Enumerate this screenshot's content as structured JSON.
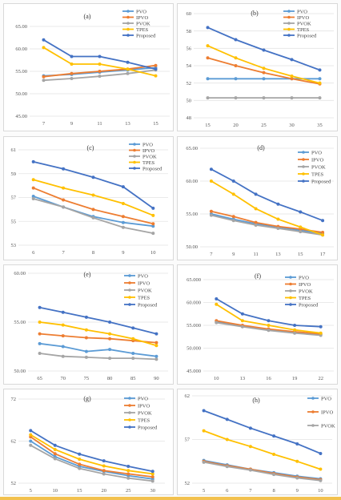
{
  "series_names": [
    "PVO",
    "IPVO",
    "PVOK",
    "TPES",
    "Proposed"
  ],
  "colors": {
    "PVO": "#5b9bd5",
    "IPVO": "#ed7d31",
    "PVOK": "#a5a5a5",
    "TPES": "#ffc000",
    "Proposed": "#4472c4"
  },
  "chart_data": [
    {
      "id": "a",
      "panel_label": "(a)",
      "type": "line",
      "x": [
        7,
        9,
        11,
        13,
        15
      ],
      "x_tick_labels": [
        "7",
        "9",
        "11",
        "13",
        "15"
      ],
      "ylim": [
        45,
        65
      ],
      "y_ticks": [
        45,
        50,
        55,
        60,
        65
      ],
      "y_tick_labels": [
        "45.00",
        "50.00",
        "55.00",
        "60.00",
        "65.00"
      ],
      "series": [
        {
          "name": "PVO",
          "values": [
            54.0,
            54.3,
            54.8,
            55.3,
            55.8
          ]
        },
        {
          "name": "IPVO",
          "values": [
            53.8,
            54.5,
            55.0,
            55.5,
            56.3
          ]
        },
        {
          "name": "PVOK",
          "values": [
            53.0,
            53.4,
            53.9,
            54.5,
            55.3
          ]
        },
        {
          "name": "TPES",
          "values": [
            60.3,
            56.6,
            56.6,
            55.5,
            54.0
          ]
        },
        {
          "name": "Proposed",
          "values": [
            62.0,
            58.3,
            58.3,
            57.0,
            55.5
          ]
        }
      ]
    },
    {
      "id": "b",
      "panel_label": "(b)",
      "type": "line",
      "x": [
        15,
        20,
        25,
        30,
        35
      ],
      "x_tick_labels": [
        "15",
        "20",
        "25",
        "30",
        "35"
      ],
      "ylim": [
        48,
        60
      ],
      "y_ticks": [
        48,
        50,
        52,
        54,
        56,
        58,
        60
      ],
      "y_tick_labels": [
        "48",
        "50",
        "52",
        "54",
        "56",
        "58",
        "60"
      ],
      "series": [
        {
          "name": "PVO",
          "values": [
            52.5,
            52.5,
            52.5,
            52.5,
            52.5
          ]
        },
        {
          "name": "IPVO",
          "values": [
            54.9,
            54.0,
            53.2,
            52.5,
            51.9
          ]
        },
        {
          "name": "PVOK",
          "values": [
            50.3,
            50.3,
            50.3,
            50.3,
            50.3
          ]
        },
        {
          "name": "TPES",
          "values": [
            56.3,
            54.9,
            53.7,
            52.8,
            52.0
          ]
        },
        {
          "name": "Proposed",
          "values": [
            58.4,
            57.0,
            55.8,
            54.7,
            53.5
          ]
        }
      ]
    },
    {
      "id": "c",
      "panel_label": "(c)",
      "type": "line",
      "x": [
        6,
        7,
        8,
        9,
        10
      ],
      "x_tick_labels": [
        "6",
        "7",
        "8",
        "9",
        "10"
      ],
      "ylim": [
        53,
        61
      ],
      "y_ticks": [
        53,
        55,
        57,
        59,
        61
      ],
      "y_tick_labels": [
        "53",
        "55",
        "57",
        "59",
        "61"
      ],
      "series": [
        {
          "name": "PVO",
          "values": [
            57.1,
            56.2,
            55.4,
            54.9,
            54.6
          ]
        },
        {
          "name": "IPVO",
          "values": [
            57.8,
            56.8,
            56.0,
            55.4,
            54.8
          ]
        },
        {
          "name": "PVOK",
          "values": [
            56.9,
            56.2,
            55.3,
            54.5,
            54.0
          ]
        },
        {
          "name": "TPES",
          "values": [
            58.5,
            57.8,
            57.2,
            56.5,
            55.5
          ]
        },
        {
          "name": "Proposed",
          "values": [
            60.0,
            59.4,
            58.7,
            57.9,
            56.1
          ]
        }
      ]
    },
    {
      "id": "d",
      "panel_label": "(d)",
      "type": "line",
      "x": [
        7,
        9,
        11,
        13,
        15,
        17
      ],
      "x_tick_labels": [
        "7",
        "9",
        "11",
        "13",
        "15",
        "17"
      ],
      "ylim": [
        50,
        65
      ],
      "y_ticks": [
        50,
        55,
        60,
        65
      ],
      "y_tick_labels": [
        "50.00",
        "55.00",
        "60.00",
        "65.00"
      ],
      "series": [
        {
          "name": "PVO",
          "values": [
            55.0,
            54.2,
            53.5,
            53.0,
            52.5,
            52.0
          ]
        },
        {
          "name": "IPVO",
          "values": [
            55.4,
            54.6,
            53.7,
            53.1,
            52.7,
            52.2
          ]
        },
        {
          "name": "PVOK",
          "values": [
            54.8,
            54.0,
            53.3,
            52.8,
            52.3,
            51.8
          ]
        },
        {
          "name": "TPES",
          "values": [
            60.0,
            58.0,
            55.8,
            54.2,
            53.0,
            51.8
          ]
        },
        {
          "name": "Proposed",
          "values": [
            61.8,
            60.0,
            58.0,
            56.5,
            55.3,
            54.0
          ]
        }
      ]
    },
    {
      "id": "e",
      "panel_label": "(e)",
      "type": "line",
      "x": [
        65,
        70,
        75,
        80,
        85,
        90
      ],
      "x_tick_labels": [
        "65",
        "70",
        "75",
        "80",
        "85",
        "90"
      ],
      "ylim": [
        50,
        60
      ],
      "y_ticks": [
        50,
        55,
        60
      ],
      "y_tick_labels": [
        "50.00",
        "55.00",
        "60.00"
      ],
      "series": [
        {
          "name": "PVO",
          "values": [
            52.8,
            52.5,
            52.0,
            52.2,
            51.8,
            51.5
          ]
        },
        {
          "name": "IPVO",
          "values": [
            53.8,
            53.6,
            53.4,
            53.3,
            53.1,
            52.9
          ]
        },
        {
          "name": "PVOK",
          "values": [
            51.8,
            51.5,
            51.4,
            51.3,
            51.3,
            51.2
          ]
        },
        {
          "name": "TPES",
          "values": [
            55.0,
            54.7,
            54.2,
            53.8,
            53.3,
            52.6
          ]
        },
        {
          "name": "Proposed",
          "values": [
            56.5,
            56.0,
            55.5,
            55.0,
            54.4,
            53.8
          ]
        }
      ]
    },
    {
      "id": "f",
      "panel_label": "(f)",
      "type": "line",
      "x": [
        10,
        13,
        16,
        19,
        22
      ],
      "x_tick_labels": [
        "10",
        "13",
        "16",
        "19",
        "22"
      ],
      "ylim": [
        45,
        65
      ],
      "y_ticks": [
        45,
        50,
        55,
        60,
        65
      ],
      "y_tick_labels": [
        "45.000",
        "50.000",
        "55.000",
        "60.000",
        "65.000"
      ],
      "series": [
        {
          "name": "PVO",
          "values": [
            55.8,
            54.8,
            54.0,
            53.5,
            53.0
          ]
        },
        {
          "name": "IPVO",
          "values": [
            56.0,
            55.0,
            54.2,
            53.6,
            53.1
          ]
        },
        {
          "name": "PVOK",
          "values": [
            55.6,
            54.7,
            53.9,
            53.3,
            52.8
          ]
        },
        {
          "name": "TPES",
          "values": [
            59.6,
            56.0,
            55.0,
            54.0,
            53.3
          ]
        },
        {
          "name": "Proposed",
          "values": [
            60.8,
            57.5,
            56.0,
            55.0,
            54.7
          ]
        }
      ]
    },
    {
      "id": "g",
      "panel_label": "(g)",
      "type": "line",
      "x": [
        5,
        10,
        15,
        20,
        25,
        30
      ],
      "x_tick_labels": [
        "5",
        "10",
        "15",
        "20",
        "25",
        "30"
      ],
      "ylim": [
        52,
        72
      ],
      "y_ticks": [
        52,
        62,
        72
      ],
      "y_tick_labels": [
        "52",
        "62",
        "72"
      ],
      "series": [
        {
          "name": "PVO",
          "values": [
            62.0,
            58.3,
            56.0,
            54.8,
            53.8,
            53.0
          ]
        },
        {
          "name": "IPVO",
          "values": [
            63.0,
            59.0,
            56.5,
            55.0,
            54.2,
            53.5
          ]
        },
        {
          "name": "PVOK",
          "values": [
            61.0,
            57.8,
            55.5,
            54.2,
            53.2,
            52.5
          ]
        },
        {
          "name": "TPES",
          "values": [
            63.5,
            60.0,
            57.7,
            56.1,
            55.0,
            54.2
          ]
        },
        {
          "name": "Proposed",
          "values": [
            64.5,
            61.0,
            58.9,
            57.3,
            56.0,
            54.8
          ]
        }
      ]
    },
    {
      "id": "h",
      "panel_label": "(h)",
      "type": "line",
      "x": [
        5,
        6,
        7,
        8,
        9,
        10
      ],
      "x_tick_labels": [
        "5",
        "6",
        "7",
        "8",
        "9",
        "10"
      ],
      "ylim": [
        52,
        62
      ],
      "y_ticks": [
        52,
        57,
        62
      ],
      "y_tick_labels": [
        "52",
        "57",
        "62"
      ],
      "series": [
        {
          "name": "PVO",
          "values": [
            54.6,
            54.1,
            53.6,
            53.2,
            52.8,
            52.5
          ]
        },
        {
          "name": "IPVO",
          "values": [
            54.5,
            54.0,
            53.6,
            53.1,
            52.7,
            52.4
          ]
        },
        {
          "name": "PVOK",
          "values": [
            54.4,
            53.9,
            53.5,
            53.0,
            52.6,
            52.3
          ]
        },
        {
          "name": "TPES",
          "values": [
            58.0,
            57.0,
            56.2,
            55.3,
            54.5,
            53.6
          ]
        },
        {
          "name": "Proposed",
          "values": [
            60.3,
            59.3,
            58.3,
            57.4,
            56.5,
            55.4
          ]
        }
      ]
    }
  ]
}
